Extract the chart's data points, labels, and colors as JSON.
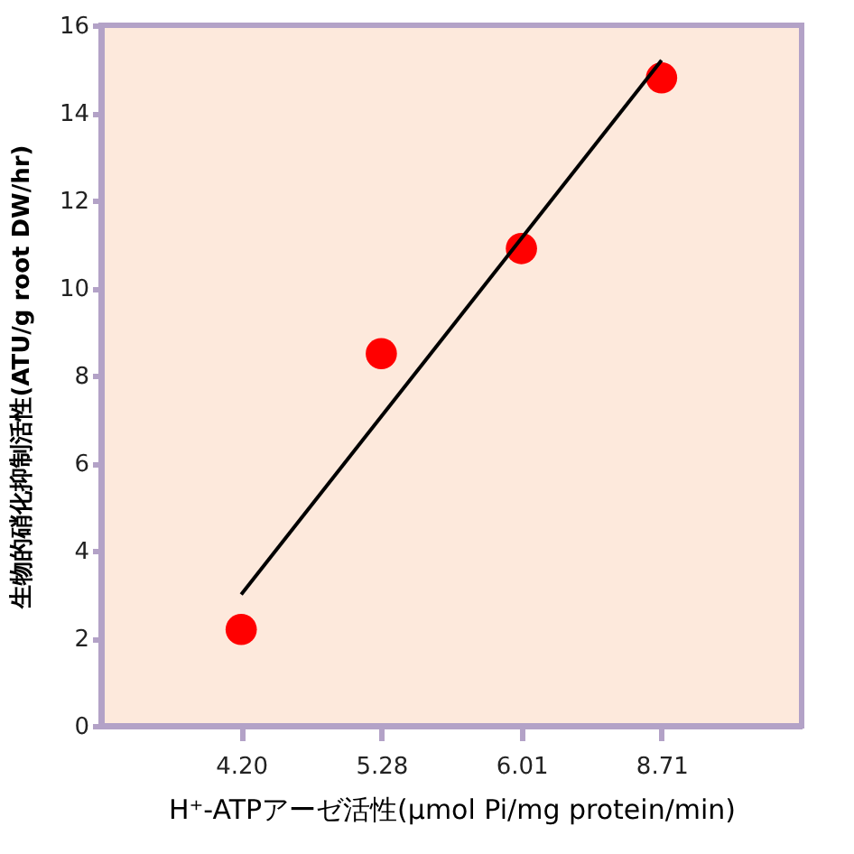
{
  "chart_data": {
    "type": "scatter",
    "xlabel": "H⁺-ATPアーゼ活性(μmol Pi/mg protein/min)",
    "ylabel": "生物的硝化抑制活性(ATU/g root DW/hr)",
    "categories": [
      "4.20",
      "5.28",
      "6.01",
      "8.71"
    ],
    "ylim": [
      0,
      16
    ],
    "yticks": [
      0,
      2,
      4,
      6,
      8,
      10,
      12,
      14,
      16
    ],
    "grid": false,
    "series": [
      {
        "color": "#ff0000",
        "marker": "circle",
        "values": [
          2.2,
          8.5,
          10.9,
          14.8
        ]
      },
      {
        "type": "line",
        "color": "#000000",
        "x": [
          "4.20",
          "8.71"
        ],
        "values": [
          3.0,
          15.2
        ]
      }
    ]
  }
}
